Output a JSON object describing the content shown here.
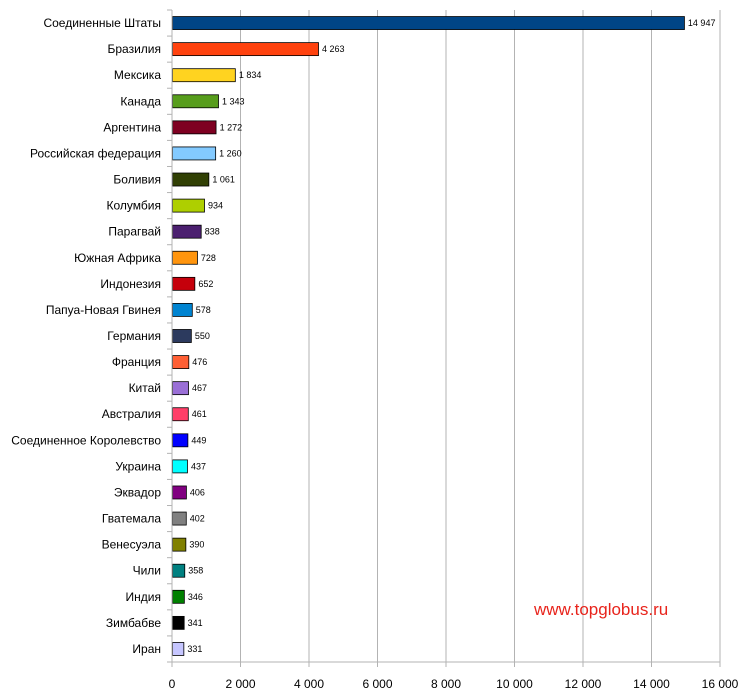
{
  "watermark": "www.topglobus.ru",
  "chart_data": {
    "type": "bar",
    "orientation": "horizontal",
    "categories": [
      "Соединенные Штаты",
      "Бразилия",
      "Мексика",
      "Канада",
      "Аргентина",
      "Российская федерация",
      "Боливия",
      "Колумбия",
      "Парагвай",
      "Южная Африка",
      "Индонезия",
      "Папуа-Новая Гвинея",
      "Германия",
      "Франция",
      "Китай",
      "Австралия",
      "Соединенное Королевство",
      "Украина",
      "Эквадор",
      "Гватемала",
      "Венесуэла",
      "Чили",
      "Индия",
      "Зимбабве",
      "Иран"
    ],
    "values": [
      14947,
      4263,
      1834,
      1343,
      1272,
      1260,
      1061,
      934,
      838,
      728,
      652,
      578,
      550,
      476,
      467,
      461,
      449,
      437,
      406,
      402,
      390,
      358,
      346,
      341,
      331
    ],
    "value_labels": [
      "14 947",
      "4 263",
      "1 834",
      "1 343",
      "1 272",
      "1 260",
      "1 061",
      "934",
      "838",
      "728",
      "652",
      "578",
      "550",
      "476",
      "467",
      "461",
      "449",
      "437",
      "406",
      "402",
      "390",
      "358",
      "346",
      "341",
      "331"
    ],
    "colors": [
      "#004586",
      "#ff420e",
      "#ffd320",
      "#579d1c",
      "#7e0021",
      "#83caff",
      "#314004",
      "#aecf00",
      "#4b1f6f",
      "#ff950e",
      "#c5000b",
      "#0084d1",
      "#2c3a5e",
      "#ff5f34",
      "#9a6fd6",
      "#ff3f68",
      "#0000ff",
      "#00ffff",
      "#800080",
      "#808080",
      "#808000",
      "#008080",
      "#008000",
      "#000000",
      "#c6c6ff"
    ],
    "xlim": [
      0,
      16000
    ],
    "xticks": [
      0,
      2000,
      4000,
      6000,
      8000,
      10000,
      12000,
      14000,
      16000
    ],
    "xtick_labels": [
      "0",
      "2 000",
      "4 000",
      "6 000",
      "8 000",
      "10 000",
      "12 000",
      "14 000",
      "16 000"
    ],
    "grid": "vertical",
    "title": "",
    "xlabel": "",
    "ylabel": ""
  }
}
